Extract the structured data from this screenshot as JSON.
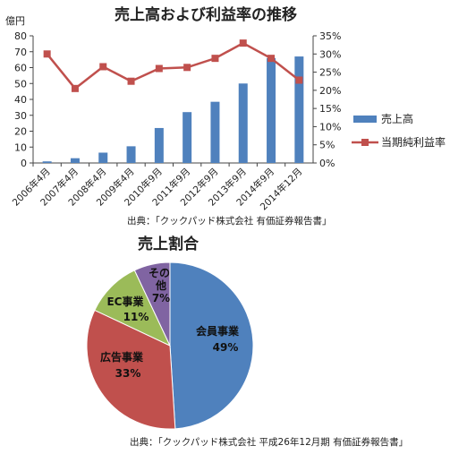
{
  "colors": {
    "bar": "#4f81bd",
    "line": "#c0504d",
    "axis": "#444444"
  },
  "chart_data": [
    {
      "type": "bar+line",
      "title": "売上高および利益率の推移",
      "ylabel_left": "億円",
      "ylim_left": [
        0,
        80
      ],
      "yticks_left": [
        "0",
        "10",
        "20",
        "30",
        "40",
        "50",
        "60",
        "70",
        "80"
      ],
      "ylim_right": [
        0,
        35
      ],
      "yticks_right": [
        "0%",
        "5%",
        "10%",
        "15%",
        "20%",
        "25%",
        "30%",
        "35%"
      ],
      "categories": [
        "2006年4月",
        "2007年4月",
        "2008年4月",
        "2009年4月",
        "2010年9月",
        "2011年9月",
        "2012年9月",
        "2013年9月",
        "2014年9月",
        "2014年12月"
      ],
      "series": [
        {
          "name": "売上高",
          "type": "bar",
          "axis": "left",
          "values": [
            1,
            3,
            6.5,
            10.5,
            22,
            32,
            38.5,
            50,
            66,
            67
          ]
        },
        {
          "name": "当期純利益率",
          "type": "line",
          "axis": "right",
          "values": [
            30,
            20.5,
            26.5,
            22.5,
            26,
            26.3,
            28.8,
            33,
            28.8,
            22.8
          ]
        }
      ],
      "legend": "right",
      "source": "出典：「クックパッド株式会社 有価証券報告書」"
    },
    {
      "type": "pie",
      "title": "売上割合",
      "slices": [
        {
          "label": "会員事業",
          "value": 49,
          "display": "49%",
          "color": "#4f81bd"
        },
        {
          "label": "広告事業",
          "value": 33,
          "display": "33%",
          "color": "#c0504d"
        },
        {
          "label": "EC事業",
          "value": 11,
          "display": "11%",
          "color": "#9bbb59"
        },
        {
          "label": "その他",
          "value": 7,
          "display": "7%",
          "color": "#8064a2"
        }
      ],
      "source": "出典：「クックパッド株式会社 平成26年12月期 有価証券報告書」"
    }
  ]
}
